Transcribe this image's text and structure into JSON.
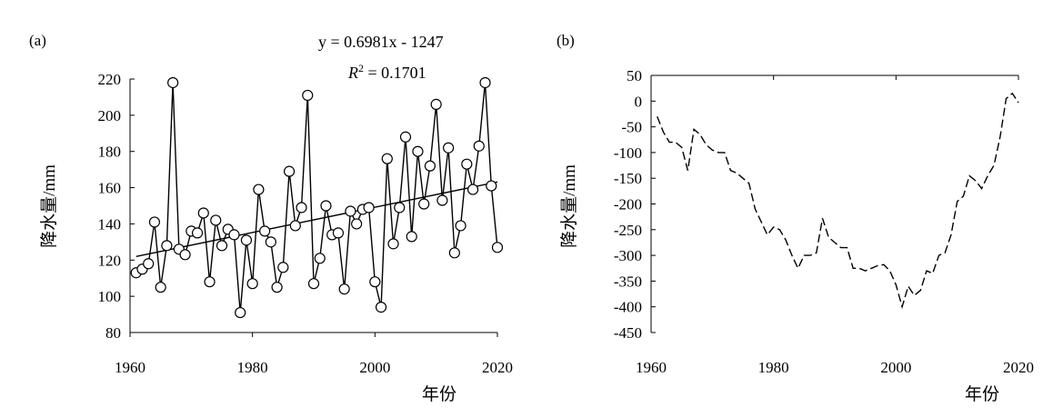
{
  "chart_data": [
    {
      "type": "line",
      "panel_label": "(a)",
      "xlabel": "年份",
      "ylabel": "降水量/mm",
      "xlim": [
        1960,
        2020
      ],
      "ylim": [
        80,
        220
      ],
      "xticks": [
        1960,
        1980,
        2000,
        2020
      ],
      "yticks": [
        80,
        100,
        120,
        140,
        160,
        180,
        200,
        220
      ],
      "grid": false,
      "markers": "open-circle",
      "series": [
        {
          "x": [
            1961,
            1962,
            1963,
            1964,
            1965,
            1966,
            1967,
            1968,
            1969,
            1970,
            1971,
            1972,
            1973,
            1974,
            1975,
            1976,
            1977,
            1978,
            1979,
            1980,
            1981,
            1982,
            1983,
            1984,
            1985,
            1986,
            1987,
            1988,
            1989,
            1990,
            1991,
            1992,
            1993,
            1994,
            1995,
            1996,
            1997,
            1998,
            1999,
            2000,
            2001,
            2002,
            2003,
            2004,
            2005,
            2006,
            2007,
            2008,
            2009,
            2010,
            2011,
            2012,
            2013,
            2014,
            2015,
            2016,
            2017,
            2018,
            2019,
            2020
          ],
          "values": [
            113,
            115,
            118,
            141,
            105,
            128,
            218,
            126,
            123,
            136,
            135,
            146,
            108,
            142,
            128,
            137,
            134,
            91,
            131,
            107,
            159,
            136,
            130,
            105,
            116,
            169,
            139,
            149,
            211,
            107,
            121,
            150,
            134,
            135,
            104,
            147,
            140,
            148,
            149,
            108,
            94,
            176,
            129,
            149,
            188,
            133,
            180,
            151,
            172,
            206,
            153,
            182,
            124,
            139,
            173,
            159,
            183,
            218,
            161,
            127
          ]
        }
      ],
      "trendline": {
        "slope": 0.6981,
        "intercept": -1247
      },
      "annotations": {
        "equation": "y = 0.6981x - 1247",
        "r2_label": "R",
        "r2_exp": "2",
        "r2_value": " = 0.1701"
      }
    },
    {
      "type": "line",
      "panel_label": "(b)",
      "xlabel": "年份",
      "ylabel": "降水量/mm",
      "xlim": [
        1960,
        2020
      ],
      "ylim": [
        -450,
        50
      ],
      "xticks": [
        1960,
        1980,
        2000,
        2020
      ],
      "yticks": [
        50,
        0,
        -50,
        -100,
        -150,
        -200,
        -250,
        -300,
        -350,
        -400,
        -450
      ],
      "grid": false,
      "line_style": "dashed",
      "series": [
        {
          "x": [
            1961,
            1962,
            1963,
            1964,
            1965,
            1966,
            1967,
            1968,
            1969,
            1970,
            1971,
            1972,
            1973,
            1974,
            1975,
            1976,
            1977,
            1978,
            1979,
            1980,
            1981,
            1982,
            1983,
            1984,
            1985,
            1986,
            1987,
            1988,
            1989,
            1990,
            1991,
            1992,
            1993,
            1994,
            1995,
            1996,
            1997,
            1998,
            1999,
            2000,
            2001,
            2002,
            2003,
            2004,
            2005,
            2006,
            2007,
            2008,
            2009,
            2010,
            2011,
            2012,
            2013,
            2014,
            2015,
            2016,
            2017,
            2018,
            2019,
            2020
          ],
          "values": [
            -30,
            -60,
            -80,
            -80,
            -90,
            -135,
            -55,
            -65,
            -85,
            -95,
            -100,
            -100,
            -135,
            -140,
            -150,
            -160,
            -210,
            -235,
            -260,
            -245,
            -250,
            -270,
            -300,
            -325,
            -300,
            -300,
            -295,
            -228,
            -265,
            -275,
            -285,
            -285,
            -325,
            -325,
            -330,
            -325,
            -320,
            -318,
            -330,
            -357,
            -400,
            -360,
            -378,
            -368,
            -330,
            -335,
            -300,
            -295,
            -260,
            -195,
            -185,
            -145,
            -155,
            -170,
            -145,
            -125,
            -70,
            5,
            15,
            -3
          ]
        }
      ]
    }
  ]
}
